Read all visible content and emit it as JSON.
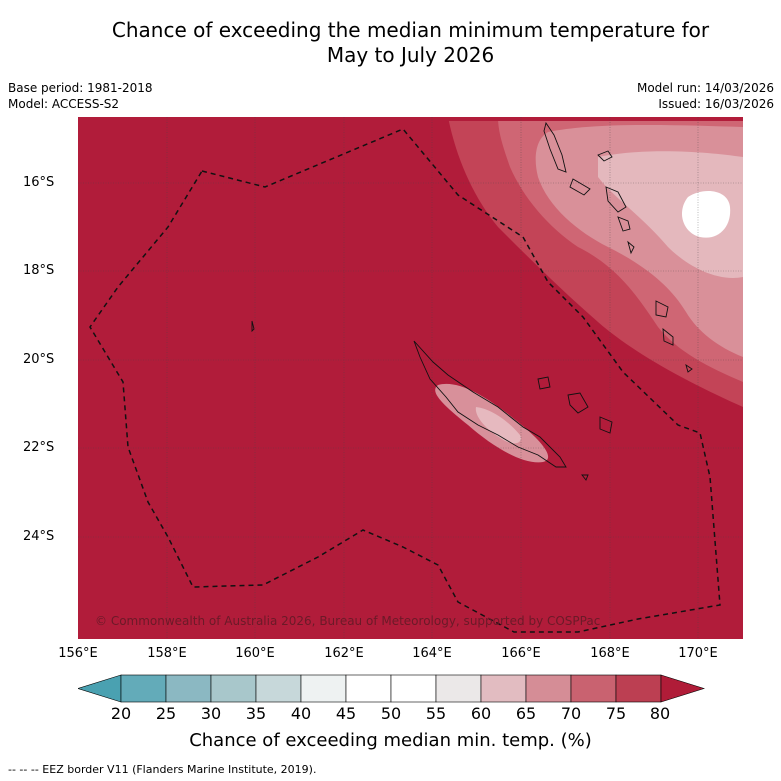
{
  "title": {
    "line1": "Chance of exceeding the median minimum temperature for",
    "line2": "May to July 2026"
  },
  "meta": {
    "base_period": "Base period: 1981-2018",
    "model": "Model: ACCESS-S2",
    "model_run": "Model run: 14/03/2026",
    "issued": "Issued: 16/03/2026"
  },
  "map": {
    "lat_labels": [
      "16°S",
      "18°S",
      "20°S",
      "22°S",
      "24°S"
    ],
    "lon_labels": [
      "156°E",
      "158°E",
      "160°E",
      "162°E",
      "164°E",
      "166°E",
      "168°E",
      "170°E"
    ],
    "copyright": "© Commonwealth of Australia 2026, Bureau of Meteorology, supported by COSPPac"
  },
  "colorbar": {
    "ticks": [
      "20",
      "25",
      "30",
      "35",
      "40",
      "45",
      "50",
      "55",
      "60",
      "65",
      "70",
      "75",
      "80"
    ],
    "colors": [
      "#63abb9",
      "#8bb8c2",
      "#a8c7cb",
      "#c7d8da",
      "#eef2f2",
      "#ffffff",
      "#ffffff",
      "#ebe8e8",
      "#e2bcc1",
      "#d58d96",
      "#c96270",
      "#bc3f52"
    ],
    "low_color": "#4aa1b1",
    "high_color": "#b01c38",
    "label": "Chance of exceeding median min. temp. (%)"
  },
  "colors": {
    "base": "#b11c3a"
  },
  "footer": "--  --  -- EEZ border V11 (Flanders Marine Institute, 2019)."
}
